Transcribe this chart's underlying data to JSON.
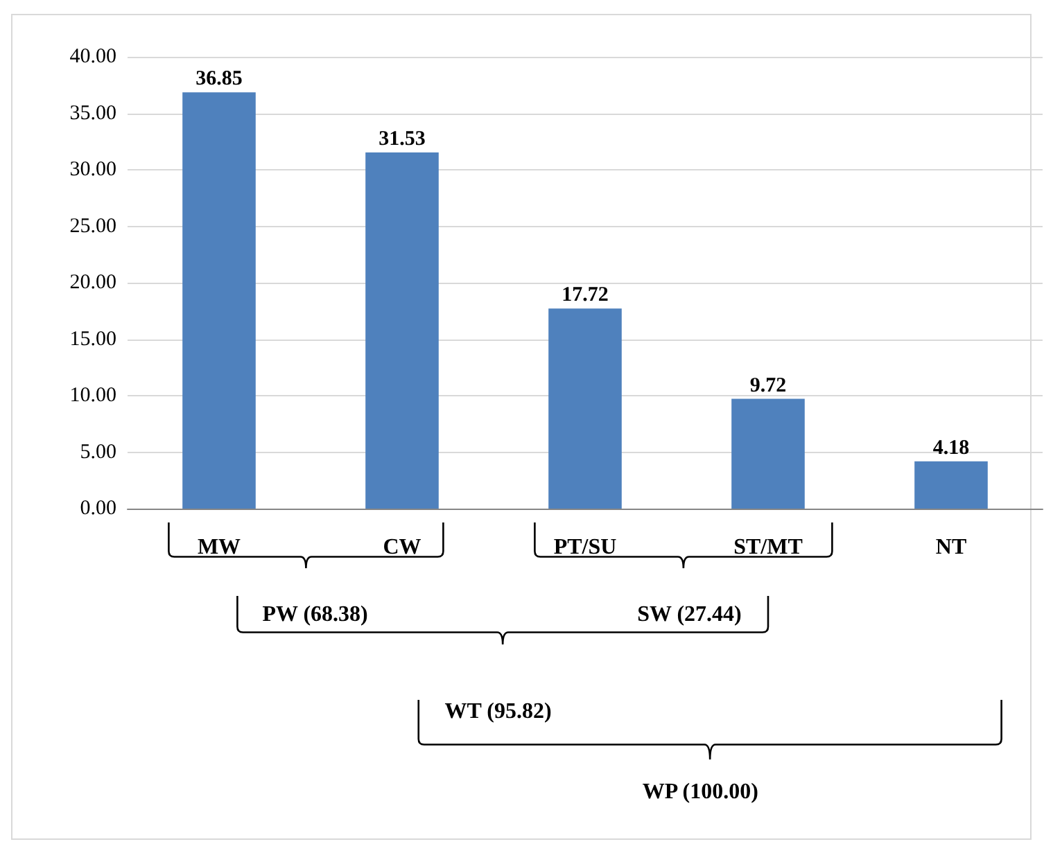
{
  "chart_data": {
    "type": "bar",
    "categories": [
      "MW",
      "CW",
      "PT/SU",
      "ST/MT",
      "NT"
    ],
    "values": [
      36.85,
      31.53,
      17.72,
      9.72,
      4.18
    ],
    "color": "#4f81bd",
    "data_labels": true,
    "ylim": [
      0,
      40
    ],
    "yticks": [
      {
        "value": 0,
        "label": "0.00"
      },
      {
        "value": 5,
        "label": "5.00"
      },
      {
        "value": 10,
        "label": "10.00"
      },
      {
        "value": 15,
        "label": "15.00"
      },
      {
        "value": 20,
        "label": "20.00"
      },
      {
        "value": 25,
        "label": "25.00"
      },
      {
        "value": 30,
        "label": "30.00"
      },
      {
        "value": 35,
        "label": "35.00"
      },
      {
        "value": 40,
        "label": "40.00"
      }
    ],
    "grid": "y",
    "annotations": [
      "PW (68.38)",
      "SW (27.44)",
      "WT (95.82)",
      "WP (100.00)"
    ]
  }
}
